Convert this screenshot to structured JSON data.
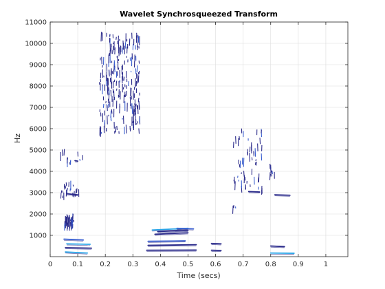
{
  "chart_data": {
    "type": "heatmap",
    "title": "Wavelet Synchrosqueezed Transform",
    "xlabel": "Time (secs)",
    "ylabel": "Hz",
    "xlim": [
      0,
      1.08
    ],
    "ylim": [
      0,
      11000
    ],
    "xticks": [
      0,
      0.1,
      0.2,
      0.3,
      0.4,
      0.5,
      0.6,
      0.7,
      0.8,
      0.9,
      1
    ],
    "xtick_labels": [
      "0",
      "0.1",
      "0.2",
      "0.3",
      "0.4",
      "0.5",
      "0.6",
      "0.7",
      "0.8",
      "0.9",
      "1"
    ],
    "yticks": [
      1000,
      2000,
      3000,
      4000,
      5000,
      6000,
      7000,
      8000,
      9000,
      10000,
      11000
    ],
    "ytick_labels": [
      "1000",
      "2000",
      "3000",
      "4000",
      "5000",
      "6000",
      "7000",
      "8000",
      "9000",
      "10000",
      "11000"
    ],
    "grid": true,
    "colors": {
      "dark": "#2a2a8a",
      "mid": "#3a5fd0",
      "light": "#2aa6e8"
    },
    "features": [
      {
        "kind": "ridge",
        "t0": 0.055,
        "t1": 0.135,
        "f0": 220,
        "f1": 170,
        "tone": "light"
      },
      {
        "kind": "ridge",
        "t0": 0.055,
        "t1": 0.15,
        "f0": 420,
        "f1": 400,
        "tone": "dark"
      },
      {
        "kind": "ridge",
        "t0": 0.06,
        "t1": 0.145,
        "f0": 600,
        "f1": 580,
        "tone": "light"
      },
      {
        "kind": "ridge",
        "t0": 0.05,
        "t1": 0.12,
        "f0": 820,
        "f1": 780,
        "tone": "mid"
      },
      {
        "kind": "ridge",
        "t0": 0.35,
        "t1": 0.53,
        "f0": 300,
        "f1": 310,
        "tone": "dark"
      },
      {
        "kind": "ridge",
        "t0": 0.355,
        "t1": 0.53,
        "f0": 530,
        "f1": 560,
        "tone": "dark"
      },
      {
        "kind": "ridge",
        "t0": 0.355,
        "t1": 0.49,
        "f0": 720,
        "f1": 740,
        "tone": "mid"
      },
      {
        "kind": "ridge",
        "t0": 0.38,
        "t1": 0.5,
        "f0": 1050,
        "f1": 1120,
        "tone": "dark"
      },
      {
        "kind": "ridge",
        "t0": 0.37,
        "t1": 0.5,
        "f0": 1250,
        "f1": 1330,
        "tone": "light"
      },
      {
        "kind": "ridge",
        "t0": 0.39,
        "t1": 0.5,
        "f0": 1180,
        "f1": 1230,
        "tone": "dark"
      },
      {
        "kind": "ridge",
        "t0": 0.46,
        "t1": 0.52,
        "f0": 1330,
        "f1": 1300,
        "tone": "mid"
      },
      {
        "kind": "ridge",
        "t0": 0.585,
        "t1": 0.62,
        "f0": 300,
        "f1": 290,
        "tone": "dark"
      },
      {
        "kind": "ridge",
        "t0": 0.585,
        "t1": 0.62,
        "f0": 620,
        "f1": 600,
        "tone": "dark"
      },
      {
        "kind": "ridge",
        "t0": 0.8,
        "t1": 0.885,
        "f0": 170,
        "f1": 160,
        "tone": "light"
      },
      {
        "kind": "ridge",
        "t0": 0.8,
        "t1": 0.85,
        "f0": 500,
        "f1": 470,
        "tone": "dark"
      },
      {
        "kind": "ridge",
        "t0": 0.815,
        "t1": 0.87,
        "f0": 2900,
        "f1": 2880,
        "tone": "dark"
      },
      {
        "kind": "ridge",
        "t0": 0.72,
        "t1": 0.76,
        "f0": 3050,
        "f1": 3030,
        "tone": "dark"
      },
      {
        "kind": "ridge",
        "t0": 0.06,
        "t1": 0.1,
        "f0": 2950,
        "f1": 2900,
        "tone": "dark"
      },
      {
        "kind": "ridge",
        "t0": 0.09,
        "t1": 0.1,
        "f0": 4500,
        "f1": 4480,
        "tone": "dark"
      },
      {
        "kind": "cloud",
        "t0": 0.05,
        "t1": 0.085,
        "f0": 1350,
        "f1": 1850,
        "n": 40,
        "seed": 3
      },
      {
        "kind": "cloud",
        "t0": 0.035,
        "t1": 0.105,
        "f0": 2750,
        "f1": 3400,
        "n": 22,
        "seed": 5
      },
      {
        "kind": "cloud",
        "t0": 0.03,
        "t1": 0.12,
        "f0": 4300,
        "f1": 4950,
        "n": 12,
        "seed": 7
      },
      {
        "kind": "cloud",
        "t0": 0.175,
        "t1": 0.325,
        "f0": 5800,
        "f1": 10400,
        "n": 240,
        "seed": 11
      },
      {
        "kind": "cloud",
        "t0": 0.665,
        "t1": 0.77,
        "f0": 3000,
        "f1": 5900,
        "n": 55,
        "seed": 13
      },
      {
        "kind": "cloud",
        "t0": 0.79,
        "t1": 0.82,
        "f0": 3700,
        "f1": 4350,
        "n": 8,
        "seed": 17
      },
      {
        "kind": "cloud",
        "t0": 0.66,
        "t1": 0.675,
        "f0": 2200,
        "f1": 2400,
        "n": 3,
        "seed": 19
      }
    ]
  }
}
